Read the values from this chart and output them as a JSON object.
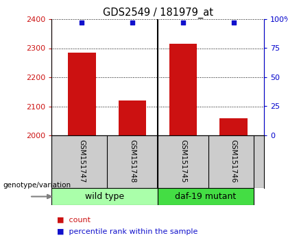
{
  "title": "GDS2549 / 181979_at",
  "samples": [
    "GSM151747",
    "GSM151748",
    "GSM151745",
    "GSM151746"
  ],
  "counts": [
    2285,
    2120,
    2315,
    2060
  ],
  "percentiles": [
    97,
    97,
    97,
    97
  ],
  "bar_color": "#cc1111",
  "dot_color": "#1111cc",
  "ylim_left": [
    2000,
    2400
  ],
  "ylim_right": [
    0,
    100
  ],
  "yticks_left": [
    2000,
    2100,
    2200,
    2300,
    2400
  ],
  "yticks_right": [
    0,
    25,
    50,
    75,
    100
  ],
  "ytick_labels_right": [
    "0",
    "25",
    "50",
    "75",
    "100%"
  ],
  "groups": [
    {
      "label": "wild type",
      "color": "#aaffaa"
    },
    {
      "label": "daf-19 mutant",
      "color": "#44dd44"
    }
  ],
  "genotype_label": "genotype/variation",
  "legend_count_label": "count",
  "legend_percentile_label": "percentile rank within the sample",
  "background_color": "#ffffff",
  "label_area_color": "#cccccc",
  "bar_width": 0.55
}
